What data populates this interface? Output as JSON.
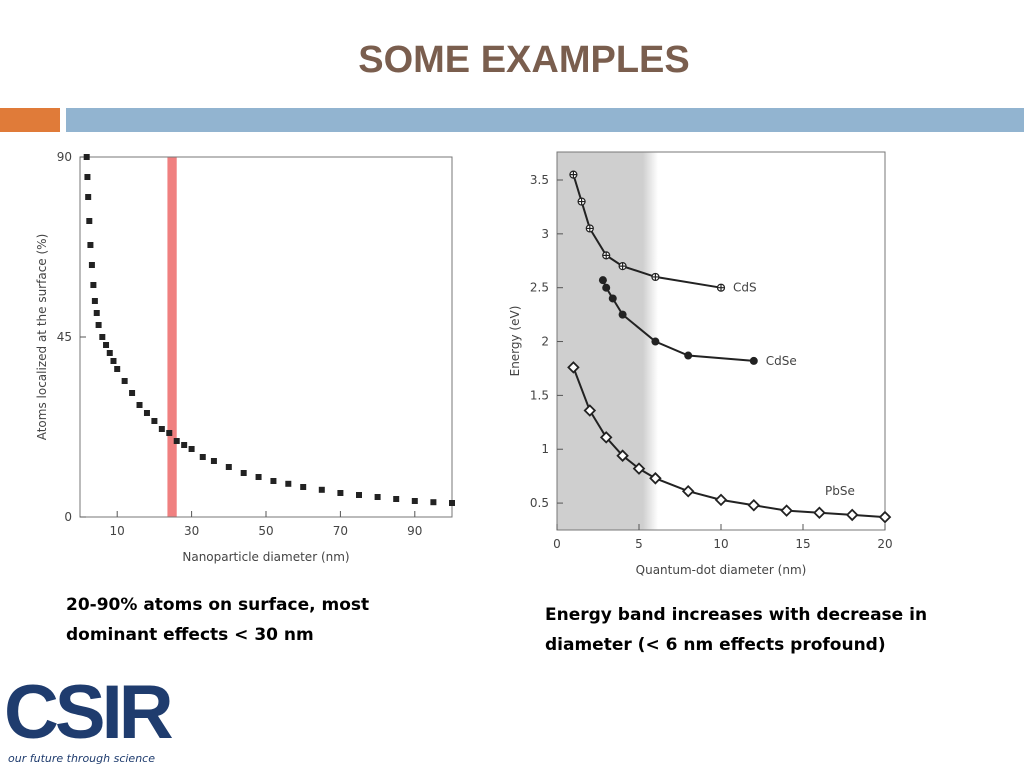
{
  "title": "SOME EXAMPLES",
  "captions": [
    "20-90% atoms on surface, most dominant effects < 30 nm",
    "Energy band increases with decrease in diameter (< 6 nm effects profound)"
  ],
  "logo": {
    "name": "CSIR",
    "tagline": "our future through science"
  },
  "chart_data": [
    {
      "type": "scatter",
      "xlabel": "Nanoparticle diameter (nm)",
      "ylabel": "Atoms localized at the surface (%)",
      "x": [
        1.8,
        2,
        2.2,
        2.5,
        2.8,
        3.2,
        3.6,
        4,
        4.5,
        5,
        6,
        7,
        8,
        9,
        10,
        12,
        14,
        16,
        18,
        20,
        22,
        24,
        26,
        28,
        30,
        33,
        36,
        40,
        44,
        48,
        52,
        56,
        60,
        65,
        70,
        75,
        80,
        85,
        90,
        95,
        100
      ],
      "values": [
        90,
        85,
        80,
        74,
        68,
        63,
        58,
        54,
        51,
        48,
        45,
        43,
        41,
        39,
        37,
        34,
        31,
        28,
        26,
        24,
        22,
        21,
        19,
        18,
        17,
        15,
        14,
        12.5,
        11,
        10,
        9,
        8.3,
        7.5,
        6.8,
        6,
        5.5,
        5,
        4.5,
        4,
        3.7,
        3.5
      ],
      "color": "#222222",
      "marker": "square",
      "highlight": {
        "x": [
          23.5,
          26
        ],
        "color": "#f08080"
      },
      "xlim": [
        0,
        100
      ],
      "xticks": [
        10,
        30,
        50,
        70,
        90
      ],
      "ylim": [
        0,
        90
      ],
      "yticks": [
        0,
        45,
        90
      ]
    },
    {
      "type": "line",
      "xlabel": "Quantum-dot diameter (nm)",
      "ylabel": "Energy (eV)",
      "shade": {
        "x": [
          0,
          5.5
        ],
        "color": "#cfcfcf"
      },
      "series": [
        {
          "name": "CdS",
          "color": "#222222",
          "marker": "cross-circle",
          "x": [
            1,
            1.5,
            2,
            3,
            4,
            6,
            10
          ],
          "values": [
            3.55,
            3.3,
            3.05,
            2.8,
            2.7,
            2.6,
            2.5
          ]
        },
        {
          "name": "CdSe",
          "color": "#222222",
          "marker": "circle",
          "x": [
            2.8,
            3,
            3.4,
            4,
            6,
            8,
            12
          ],
          "values": [
            2.57,
            2.5,
            2.4,
            2.25,
            2.0,
            1.87,
            1.82
          ]
        },
        {
          "name": "PbSe",
          "color": "#222222",
          "marker": "diamond",
          "x": [
            1,
            2,
            3,
            4,
            5,
            6,
            8,
            10,
            12,
            14,
            16,
            18,
            20
          ],
          "values": [
            1.76,
            1.36,
            1.11,
            0.94,
            0.82,
            0.73,
            0.61,
            0.53,
            0.48,
            0.43,
            0.41,
            0.39,
            0.37
          ]
        }
      ],
      "xlim": [
        0,
        20
      ],
      "xticks": [
        0,
        5,
        10,
        15,
        20
      ],
      "ylim": [
        0.25,
        3.76
      ],
      "yticks": [
        0.5,
        1,
        1.5,
        2,
        2.5,
        3,
        3.5
      ]
    }
  ]
}
